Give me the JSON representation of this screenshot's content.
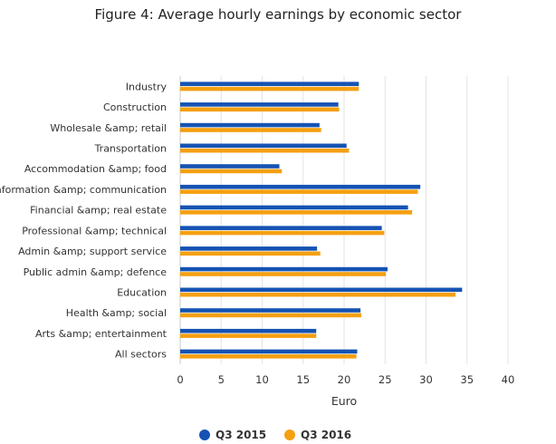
{
  "chart_data": {
    "type": "bar",
    "orientation": "horizontal",
    "title": "Figure 4: Average hourly earnings by economic sector",
    "xlabel": "Euro",
    "ylabel": "",
    "xlim": [
      0,
      40
    ],
    "ticks": [
      "0",
      "5",
      "10",
      "15",
      "20",
      "25",
      "30",
      "35",
      "40"
    ],
    "grid": true,
    "legend_position": "bottom",
    "categories": [
      "Industry",
      "Construction",
      "Wholesale &amp; retail",
      "Transportation",
      "Accommodation &amp; food",
      "Information &amp; communication",
      "Financial &amp; real estate",
      "Professional &amp; technical",
      "Admin &amp; support service",
      "Public admin &amp; defence",
      "Education",
      "Health &amp; social",
      "Arts &amp; entertainment",
      "All sectors"
    ],
    "series": [
      {
        "name": "Q3 2015",
        "color": "#1553b3",
        "values": [
          21.8,
          19.3,
          17.0,
          20.3,
          12.1,
          29.3,
          27.8,
          24.6,
          16.7,
          25.3,
          34.4,
          22.0,
          16.6,
          21.6
        ]
      },
      {
        "name": "Q3 2016",
        "color": "#f4a012",
        "values": [
          21.8,
          19.4,
          17.2,
          20.6,
          12.4,
          29.0,
          28.3,
          24.9,
          17.1,
          25.1,
          33.6,
          22.1,
          16.6,
          21.5
        ]
      }
    ]
  }
}
